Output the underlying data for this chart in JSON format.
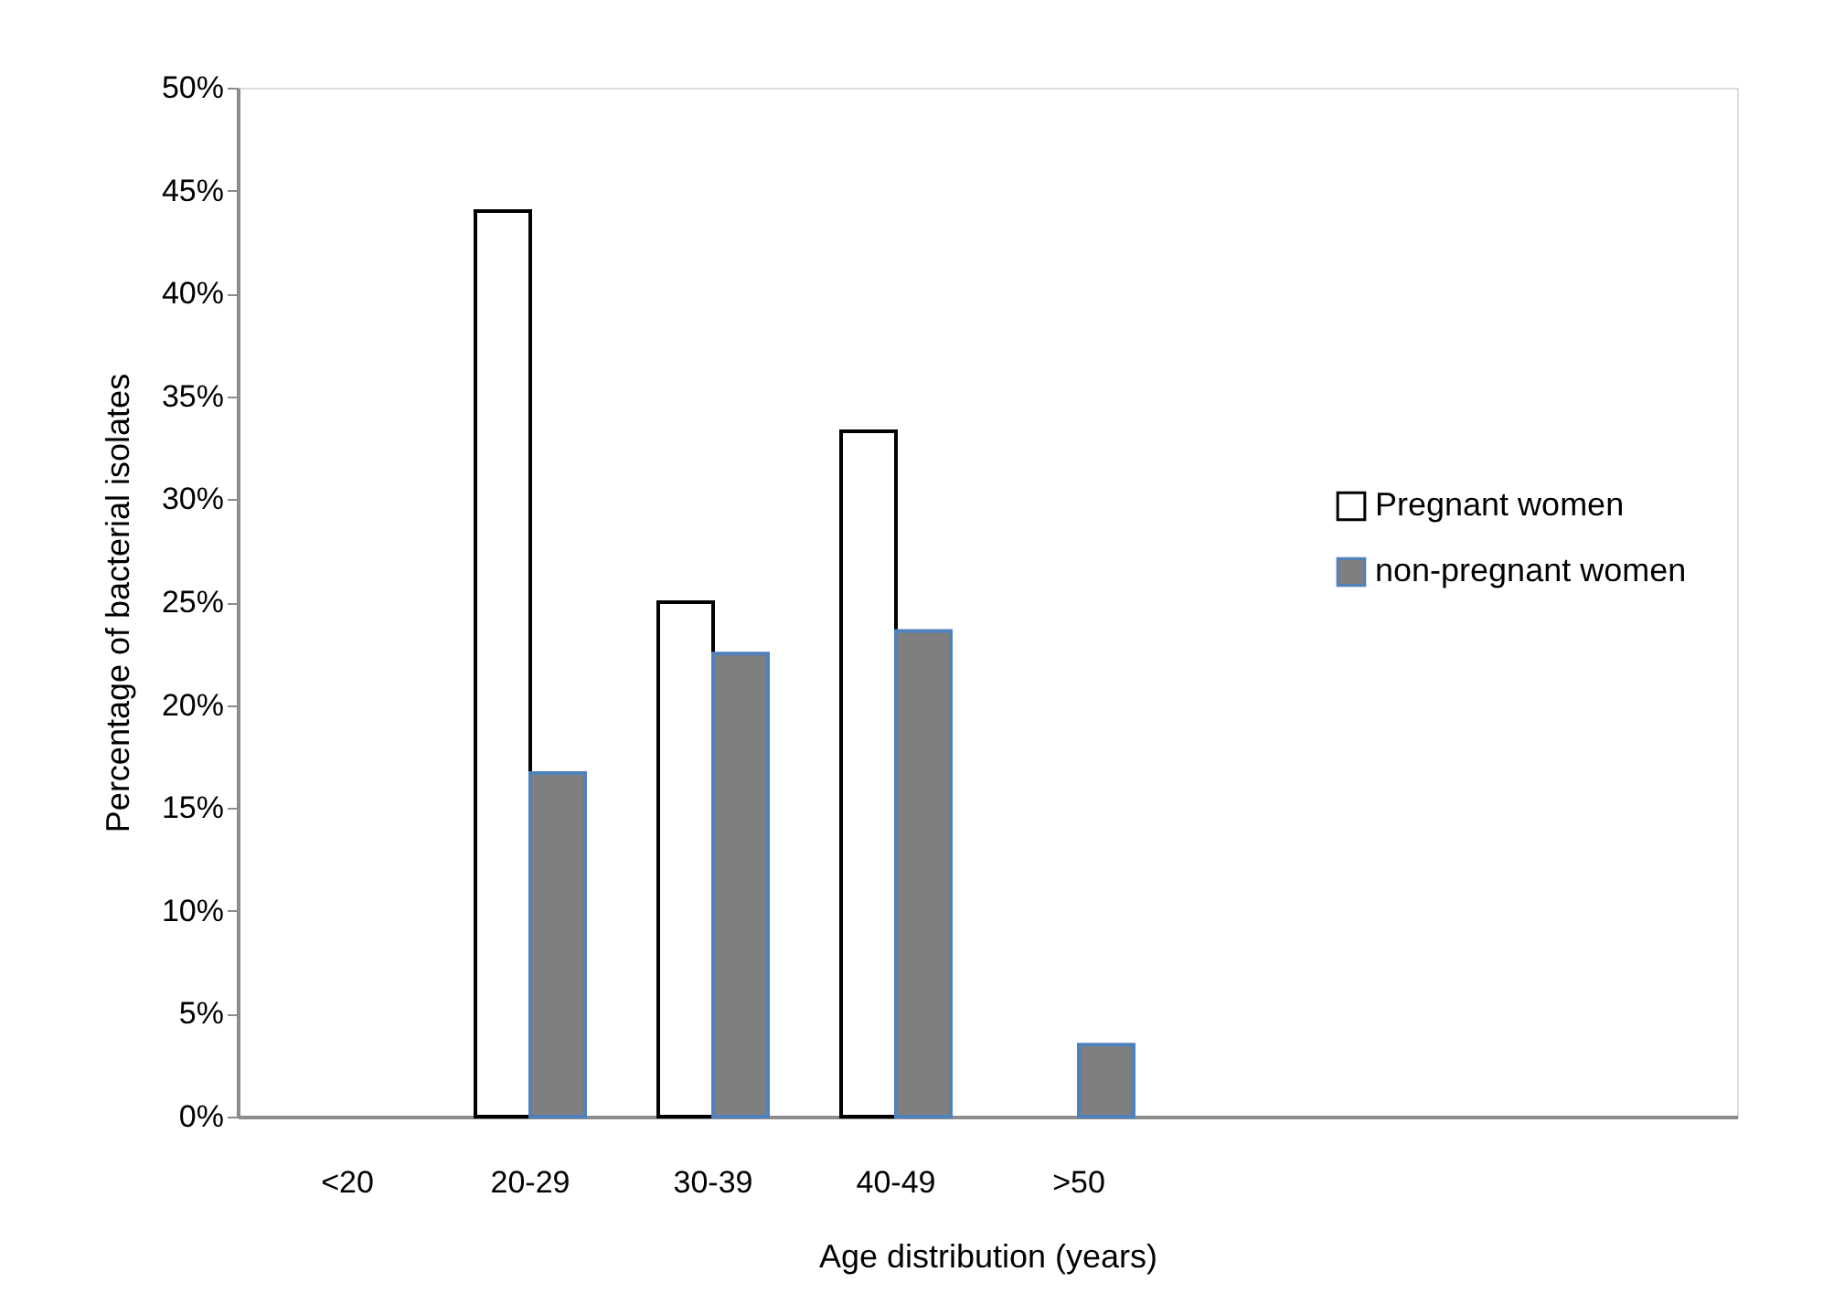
{
  "chart_data": {
    "type": "bar",
    "xlabel": "Age distribution (years)",
    "ylabel": "Percentage of bacterial isolates",
    "categories": [
      "<20",
      "20-29",
      "30-39",
      "40-49",
      ">50",
      null,
      null,
      null
    ],
    "series": [
      {
        "name": "Pregnant women",
        "color": "#ffffff",
        "values": [
          null,
          44,
          25,
          33.3,
          null,
          null,
          null,
          null
        ]
      },
      {
        "name": "non-pregnant women",
        "color": "#7f7f7f",
        "values": [
          null,
          16.7,
          22.5,
          23.6,
          3.5,
          null,
          null,
          null
        ]
      }
    ],
    "ylim": [
      0,
      50
    ],
    "yticks": [
      {
        "value": 0,
        "label": "0%"
      },
      {
        "value": 5,
        "label": "5%"
      },
      {
        "value": 10,
        "label": "10%"
      },
      {
        "value": 15,
        "label": "15%"
      },
      {
        "value": 20,
        "label": "20%"
      },
      {
        "value": 25,
        "label": "25%"
      },
      {
        "value": 30,
        "label": "30%"
      },
      {
        "value": 35,
        "label": "35%"
      },
      {
        "value": 40,
        "label": "40%"
      },
      {
        "value": 45,
        "label": "45%"
      },
      {
        "value": 50,
        "label": "50%"
      }
    ],
    "grid": false,
    "legend": "right"
  }
}
